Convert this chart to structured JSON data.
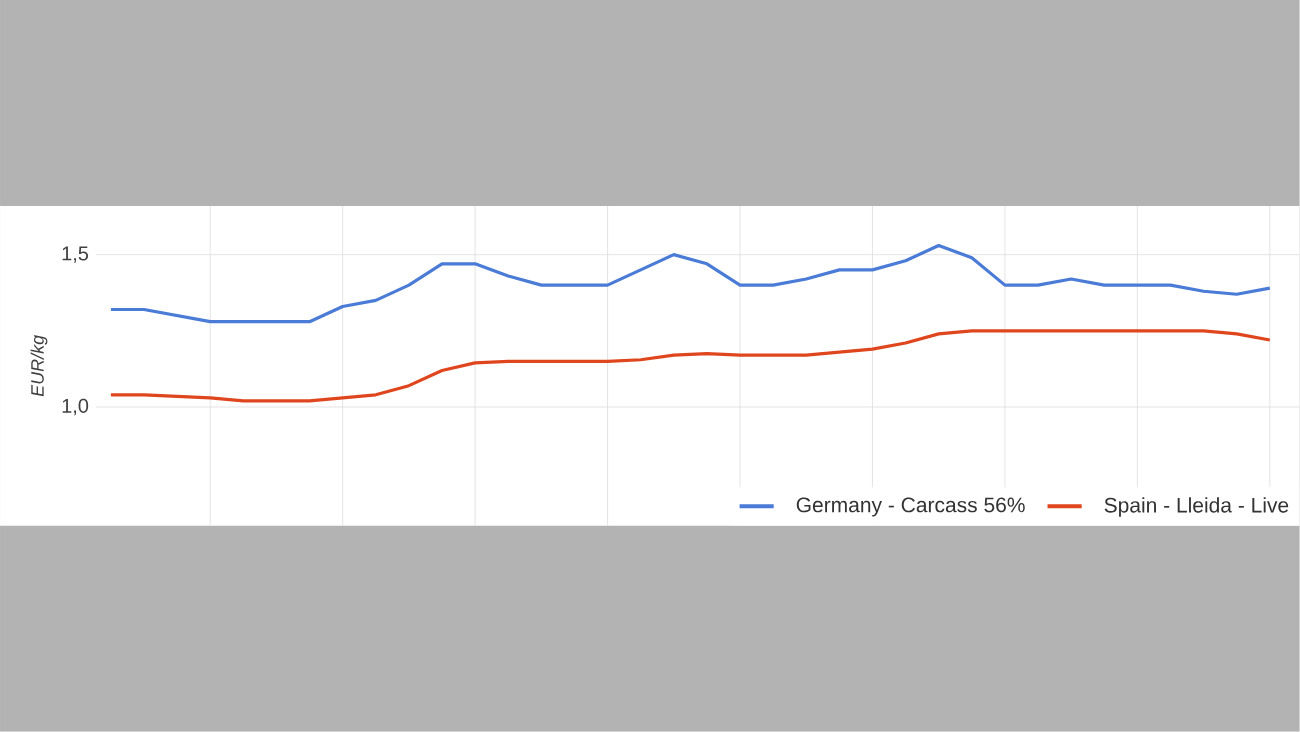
{
  "chart_data": {
    "type": "line",
    "ylabel": "EUR/kg",
    "categories": [
      null,
      null,
      null,
      null,
      null,
      null,
      null,
      null,
      null,
      null,
      null,
      null,
      null,
      null,
      null,
      null,
      null,
      null,
      null,
      null,
      null,
      null,
      null,
      null,
      null,
      null,
      null,
      null,
      null,
      null,
      null,
      null,
      null,
      null,
      null,
      null
    ],
    "series": [
      {
        "name": "Germany - Carcass 56%",
        "color": "#4a7bd6",
        "values": [
          1.32,
          1.32,
          1.3,
          1.28,
          1.28,
          1.28,
          1.28,
          1.33,
          1.35,
          1.4,
          1.47,
          1.47,
          1.43,
          1.4,
          1.4,
          1.4,
          1.45,
          1.5,
          1.47,
          1.4,
          1.4,
          1.42,
          1.45,
          1.45,
          1.48,
          1.53,
          1.49,
          1.4,
          1.4,
          1.42,
          1.4,
          1.4,
          1.4,
          1.38,
          1.37,
          1.39
        ]
      },
      {
        "name": "Spain - Lleida - Live",
        "color": "#e0461e",
        "values": [
          1.04,
          1.04,
          1.035,
          1.03,
          1.02,
          1.02,
          1.02,
          1.03,
          1.04,
          1.07,
          1.12,
          1.145,
          1.15,
          1.15,
          1.15,
          1.15,
          1.155,
          1.17,
          1.175,
          1.17,
          1.17,
          1.17,
          1.18,
          1.19,
          1.21,
          1.24,
          1.25,
          1.25,
          1.25,
          1.25,
          1.25,
          1.25,
          1.25,
          1.25,
          1.24,
          1.22
        ]
      }
    ],
    "ylim": [
      0.61,
      1.66
    ],
    "yticks": [
      {
        "value": 1.0,
        "label": "1,0"
      },
      {
        "value": 1.5,
        "label": "1,5"
      }
    ],
    "grid": true,
    "legend": "bottom right",
    "marker": "none",
    "line_style": "solid"
  }
}
